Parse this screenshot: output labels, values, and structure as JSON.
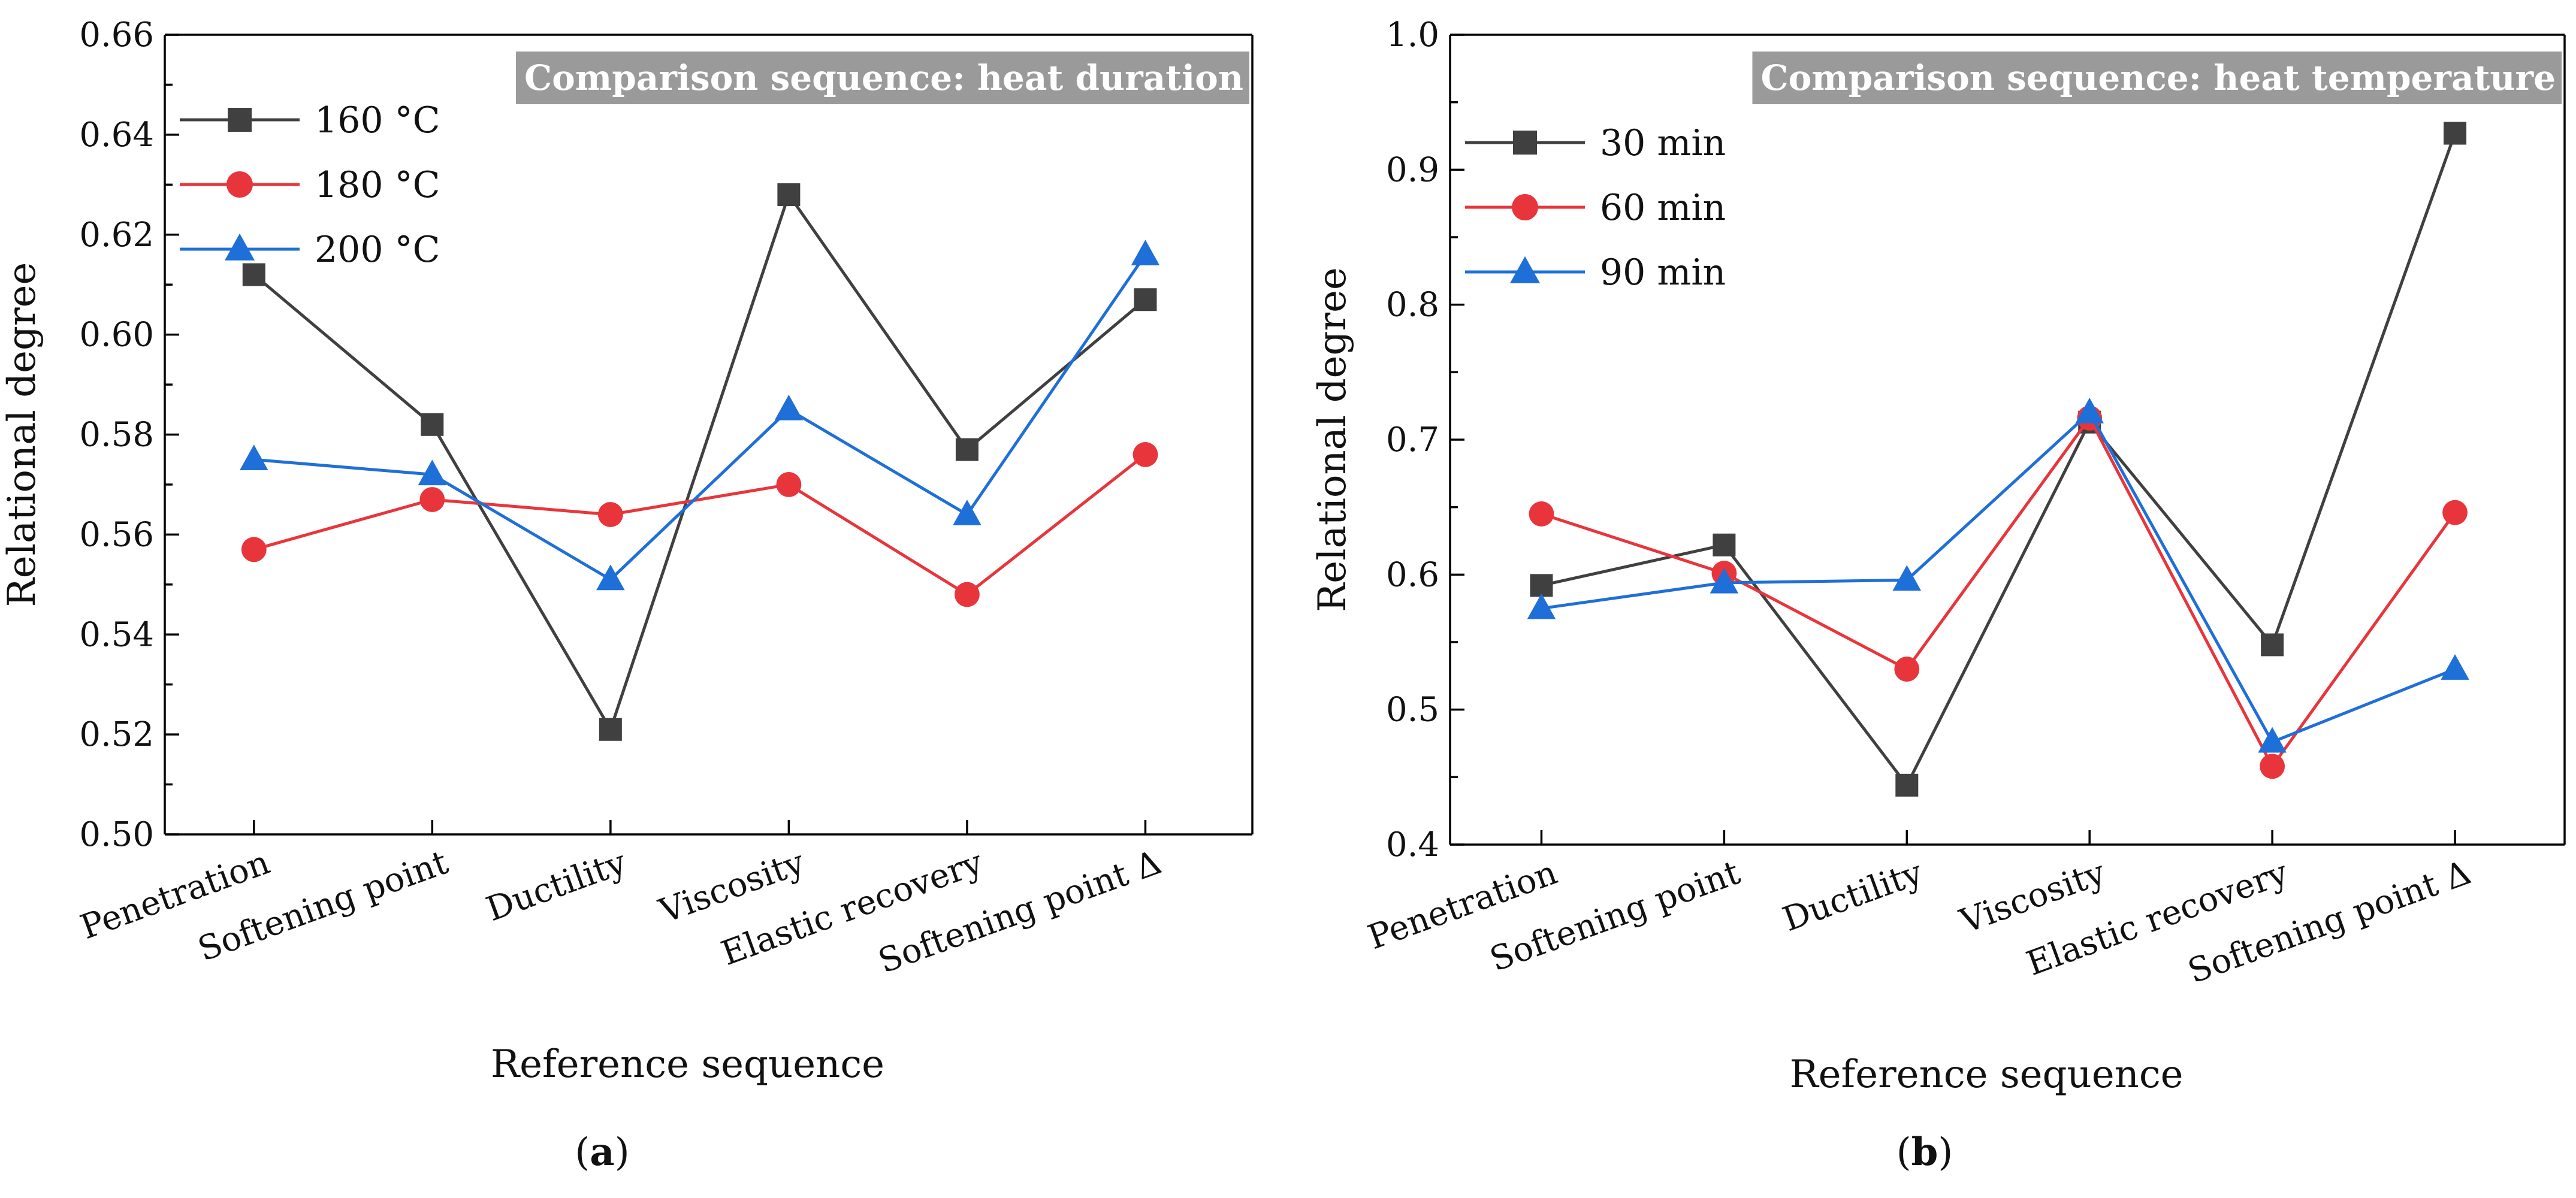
{
  "chart_data": [
    {
      "type": "line",
      "panel_label": "(a)",
      "panel_letter": "a",
      "annotation": "Comparison sequence: heat duration",
      "xlabel": "Reference sequence",
      "ylabel": "Relational degree",
      "ylim": [
        0.5,
        0.66
      ],
      "yticks": [
        "0.50",
        "0.52",
        "0.54",
        "0.56",
        "0.58",
        "0.60",
        "0.62",
        "0.64",
        "0.66"
      ],
      "categories": [
        "Penetration",
        "Softening point",
        "Ductility",
        "Viscosity",
        "Elastic recovery",
        "Softening point Δ"
      ],
      "legend_position": "top-left",
      "series": [
        {
          "name": "160 °C",
          "marker": "square",
          "color": "#404040",
          "values": [
            0.612,
            0.582,
            0.521,
            0.628,
            0.577,
            0.607
          ]
        },
        {
          "name": "180 °C",
          "marker": "circle",
          "color": "#e8353b",
          "values": [
            0.557,
            0.567,
            0.564,
            0.57,
            0.548,
            0.576
          ]
        },
        {
          "name": "200 °C",
          "marker": "triangle",
          "color": "#1f6fd8",
          "values": [
            0.575,
            0.572,
            0.551,
            0.585,
            0.564,
            0.616
          ]
        }
      ]
    },
    {
      "type": "line",
      "panel_label": "(b)",
      "panel_letter": "b",
      "annotation": "Comparison sequence: heat temperature",
      "xlabel": "Reference sequence",
      "ylabel": "Relational degree",
      "ylim": [
        0.4,
        1.0
      ],
      "yticks": [
        "0.4",
        "0.5",
        "0.6",
        "0.7",
        "0.8",
        "0.9",
        "1.0"
      ],
      "categories": [
        "Penetration",
        "Softening point",
        "Ductility",
        "Viscosity",
        "Elastic recovery",
        "Softening point Δ"
      ],
      "legend_position": "top-left",
      "series": [
        {
          "name": "30 min",
          "marker": "square",
          "color": "#404040",
          "values": [
            0.592,
            0.622,
            0.444,
            0.713,
            0.548,
            0.927
          ]
        },
        {
          "name": "60 min",
          "marker": "circle",
          "color": "#e8353b",
          "values": [
            0.645,
            0.601,
            0.53,
            0.716,
            0.458,
            0.646
          ]
        },
        {
          "name": "90 min",
          "marker": "triangle",
          "color": "#1f6fd8",
          "values": [
            0.575,
            0.594,
            0.596,
            0.72,
            0.476,
            0.53
          ]
        }
      ]
    }
  ]
}
